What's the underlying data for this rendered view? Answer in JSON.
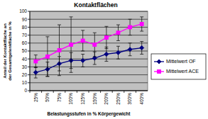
{
  "chart_data": {
    "type": "line",
    "title": "Kontaktflächen",
    "x_label": "Belastungsstufen in % Körpergewicht",
    "y_label": "Anteil der Kontaktfläche an der Gesamtgelenkfläche in %",
    "categories": [
      "25%",
      "50%",
      "75%",
      "100%",
      "125%",
      "150%",
      "200%",
      "250%",
      "300%",
      "400%"
    ],
    "series": [
      {
        "name": "Mittelwert OF",
        "color": "#000080",
        "marker": "diamond",
        "values": [
          23,
          27,
          34,
          38,
          38,
          41,
          46,
          48,
          52,
          54
        ],
        "errors": [
          7,
          9,
          9,
          10,
          8,
          8,
          9,
          8,
          8,
          8
        ]
      },
      {
        "name": "Mittelwert ACE",
        "color": "#ff00ff",
        "marker": "square",
        "values": [
          37,
          43,
          51,
          58,
          63,
          58,
          67,
          73,
          80,
          84
        ],
        "errors": [
          8,
          25,
          32,
          35,
          13,
          15,
          14,
          10,
          10,
          9
        ]
      }
    ],
    "ylim": [
      0,
      100
    ],
    "yticks": [
      0,
      10,
      20,
      30,
      40,
      50,
      60,
      70,
      80,
      90,
      100
    ],
    "grid": true,
    "legend": "right"
  }
}
